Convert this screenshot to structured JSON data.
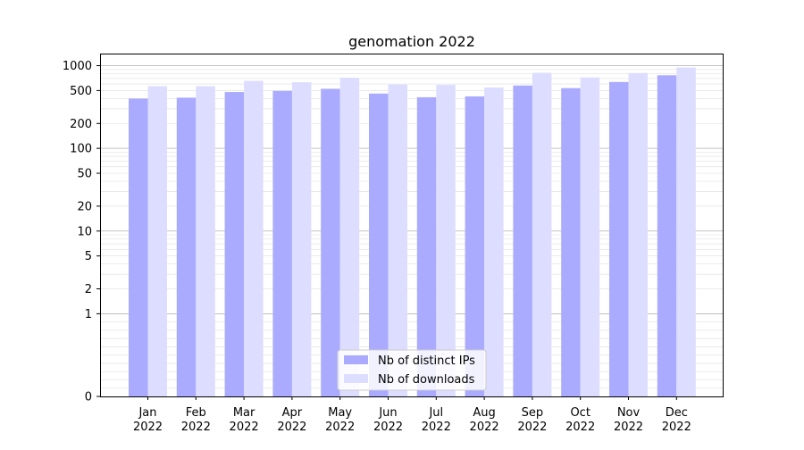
{
  "chart_data": {
    "type": "bar",
    "title": "genomation 2022",
    "xlabel": "",
    "ylabel": "",
    "yscale": "symlog",
    "ylim": [
      0,
      1400
    ],
    "yticks": [
      0,
      1,
      2,
      5,
      10,
      20,
      50,
      100,
      200,
      500,
      1000
    ],
    "ytick_labels": [
      "0",
      "1",
      "2",
      "5",
      "10",
      "20",
      "50",
      "100",
      "200",
      "500",
      "1000"
    ],
    "categories": [
      "Jan\n2022",
      "Feb\n2022",
      "Mar\n2022",
      "Apr\n2022",
      "May\n2022",
      "Jun\n2022",
      "Jul\n2022",
      "Aug\n2022",
      "Sep\n2022",
      "Oct\n2022",
      "Nov\n2022",
      "Dec\n2022"
    ],
    "series": [
      {
        "name": "Nb of distinct IPs",
        "color": "#aaaaff",
        "values": [
          400,
          410,
          480,
          495,
          525,
          460,
          415,
          425,
          575,
          535,
          635,
          765
        ]
      },
      {
        "name": "Nb of downloads",
        "color": "#ddddff",
        "values": [
          565,
          565,
          655,
          630,
          715,
          590,
          585,
          545,
          820,
          720,
          815,
          950
        ]
      }
    ],
    "grid": true,
    "legend_position": "bottom-center"
  }
}
